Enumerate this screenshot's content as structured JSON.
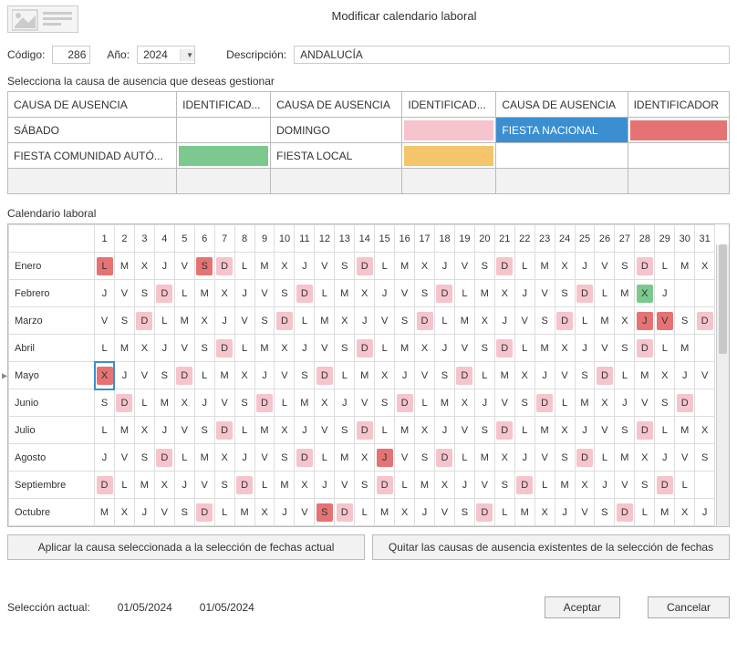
{
  "title": "Modificar calendario laboral",
  "form": {
    "codigo_label": "Código:",
    "codigo_value": "286",
    "ano_label": "Año:",
    "ano_value": "2024",
    "desc_label": "Descripción:",
    "desc_value": "ANDALUCÍA"
  },
  "absences": {
    "section_label": "Selecciona la causa de ausencia que deseas gestionar",
    "headers": [
      "CAUSA DE AUSENCIA",
      "IDENTIFICAD...",
      "CAUSA DE AUSENCIA",
      "IDENTIFICAD...",
      "CAUSA DE AUSENCIA",
      "IDENTIFICADOR"
    ],
    "rows": [
      [
        {
          "label": "SÁBADO",
          "bg": null,
          "fg": null
        },
        {
          "label": "",
          "bg": null,
          "fg": null
        },
        {
          "label": "DOMINGO",
          "bg": null,
          "fg": null
        },
        {
          "label": "",
          "bg": "#f6c4cc",
          "fg": null
        },
        {
          "label": "FIESTA NACIONAL",
          "bg": "#3b8ed0",
          "fg": "#ffffff"
        },
        {
          "label": "",
          "bg": "#e57373",
          "fg": null
        }
      ],
      [
        {
          "label": "FIESTA COMUNIDAD AUTÓ...",
          "bg": null,
          "fg": null
        },
        {
          "label": "",
          "bg": "#7bc98f",
          "fg": null
        },
        {
          "label": "FIESTA LOCAL",
          "bg": null,
          "fg": null
        },
        {
          "label": "",
          "bg": "#f5c56b",
          "fg": null
        },
        {
          "label": "",
          "bg": null,
          "fg": null
        },
        {
          "label": "",
          "bg": null,
          "fg": null
        }
      ]
    ],
    "filler_rows": 1
  },
  "calendar": {
    "section_label": "Calendario laboral",
    "day_headers": [
      "1",
      "2",
      "3",
      "4",
      "5",
      "6",
      "7",
      "8",
      "9",
      "10",
      "11",
      "12",
      "13",
      "14",
      "15",
      "16",
      "17",
      "18",
      "19",
      "20",
      "21",
      "22",
      "23",
      "24",
      "25",
      "26",
      "27",
      "28",
      "29",
      "30",
      "31"
    ],
    "months": [
      {
        "name": "Enero",
        "days": [
          {
            "g": "L",
            "c": "#e57373"
          },
          {
            "g": "M"
          },
          {
            "g": "X"
          },
          {
            "g": "J"
          },
          {
            "g": "V"
          },
          {
            "g": "S",
            "c": "#e57373"
          },
          {
            "g": "D",
            "c": "#f6c4cc"
          },
          {
            "g": "L"
          },
          {
            "g": "M"
          },
          {
            "g": "X"
          },
          {
            "g": "J"
          },
          {
            "g": "V"
          },
          {
            "g": "S"
          },
          {
            "g": "D",
            "c": "#f6c4cc"
          },
          {
            "g": "L"
          },
          {
            "g": "M"
          },
          {
            "g": "X"
          },
          {
            "g": "J"
          },
          {
            "g": "V"
          },
          {
            "g": "S"
          },
          {
            "g": "D",
            "c": "#f6c4cc"
          },
          {
            "g": "L"
          },
          {
            "g": "M"
          },
          {
            "g": "X"
          },
          {
            "g": "J"
          },
          {
            "g": "V"
          },
          {
            "g": "S"
          },
          {
            "g": "D",
            "c": "#f6c4cc"
          },
          {
            "g": "L"
          },
          {
            "g": "M"
          },
          {
            "g": "X"
          }
        ]
      },
      {
        "name": "Febrero",
        "days": [
          {
            "g": "J"
          },
          {
            "g": "V"
          },
          {
            "g": "S"
          },
          {
            "g": "D",
            "c": "#f6c4cc"
          },
          {
            "g": "L"
          },
          {
            "g": "M"
          },
          {
            "g": "X"
          },
          {
            "g": "J"
          },
          {
            "g": "V"
          },
          {
            "g": "S"
          },
          {
            "g": "D",
            "c": "#f6c4cc"
          },
          {
            "g": "L"
          },
          {
            "g": "M"
          },
          {
            "g": "X"
          },
          {
            "g": "J"
          },
          {
            "g": "V"
          },
          {
            "g": "S"
          },
          {
            "g": "D",
            "c": "#f6c4cc"
          },
          {
            "g": "L"
          },
          {
            "g": "M"
          },
          {
            "g": "X"
          },
          {
            "g": "J"
          },
          {
            "g": "V"
          },
          {
            "g": "S"
          },
          {
            "g": "D",
            "c": "#f6c4cc"
          },
          {
            "g": "L"
          },
          {
            "g": "M"
          },
          {
            "g": "X",
            "c": "#7bc98f"
          },
          {
            "g": "J"
          },
          {
            "g": ""
          },
          {
            "g": ""
          }
        ]
      },
      {
        "name": "Marzo",
        "days": [
          {
            "g": "V"
          },
          {
            "g": "S"
          },
          {
            "g": "D",
            "c": "#f6c4cc"
          },
          {
            "g": "L"
          },
          {
            "g": "M"
          },
          {
            "g": "X"
          },
          {
            "g": "J"
          },
          {
            "g": "V"
          },
          {
            "g": "S"
          },
          {
            "g": "D",
            "c": "#f6c4cc"
          },
          {
            "g": "L"
          },
          {
            "g": "M"
          },
          {
            "g": "X"
          },
          {
            "g": "J"
          },
          {
            "g": "V"
          },
          {
            "g": "S"
          },
          {
            "g": "D",
            "c": "#f6c4cc"
          },
          {
            "g": "L"
          },
          {
            "g": "M"
          },
          {
            "g": "X"
          },
          {
            "g": "J"
          },
          {
            "g": "V"
          },
          {
            "g": "S"
          },
          {
            "g": "D",
            "c": "#f6c4cc"
          },
          {
            "g": "L"
          },
          {
            "g": "M"
          },
          {
            "g": "X"
          },
          {
            "g": "J",
            "c": "#e57373"
          },
          {
            "g": "V",
            "c": "#e57373"
          },
          {
            "g": "S"
          },
          {
            "g": "D",
            "c": "#f6c4cc"
          }
        ]
      },
      {
        "name": "Abril",
        "days": [
          {
            "g": "L"
          },
          {
            "g": "M"
          },
          {
            "g": "X"
          },
          {
            "g": "J"
          },
          {
            "g": "V"
          },
          {
            "g": "S"
          },
          {
            "g": "D",
            "c": "#f6c4cc"
          },
          {
            "g": "L"
          },
          {
            "g": "M"
          },
          {
            "g": "X"
          },
          {
            "g": "J"
          },
          {
            "g": "V"
          },
          {
            "g": "S"
          },
          {
            "g": "D",
            "c": "#f6c4cc"
          },
          {
            "g": "L"
          },
          {
            "g": "M"
          },
          {
            "g": "X"
          },
          {
            "g": "J"
          },
          {
            "g": "V"
          },
          {
            "g": "S"
          },
          {
            "g": "D",
            "c": "#f6c4cc"
          },
          {
            "g": "L"
          },
          {
            "g": "M"
          },
          {
            "g": "X"
          },
          {
            "g": "J"
          },
          {
            "g": "V"
          },
          {
            "g": "S"
          },
          {
            "g": "D",
            "c": "#f6c4cc"
          },
          {
            "g": "L"
          },
          {
            "g": "M"
          },
          {
            "g": ""
          }
        ]
      },
      {
        "name": "Mayo",
        "days": [
          {
            "g": "X",
            "c": "#e57373",
            "sel": true
          },
          {
            "g": "J"
          },
          {
            "g": "V"
          },
          {
            "g": "S"
          },
          {
            "g": "D",
            "c": "#f6c4cc"
          },
          {
            "g": "L"
          },
          {
            "g": "M"
          },
          {
            "g": "X"
          },
          {
            "g": "J"
          },
          {
            "g": "V"
          },
          {
            "g": "S"
          },
          {
            "g": "D",
            "c": "#f6c4cc"
          },
          {
            "g": "L"
          },
          {
            "g": "M"
          },
          {
            "g": "X"
          },
          {
            "g": "J"
          },
          {
            "g": "V"
          },
          {
            "g": "S"
          },
          {
            "g": "D",
            "c": "#f6c4cc"
          },
          {
            "g": "L"
          },
          {
            "g": "M"
          },
          {
            "g": "X"
          },
          {
            "g": "J"
          },
          {
            "g": "V"
          },
          {
            "g": "S"
          },
          {
            "g": "D",
            "c": "#f6c4cc"
          },
          {
            "g": "L"
          },
          {
            "g": "M"
          },
          {
            "g": "X"
          },
          {
            "g": "J"
          },
          {
            "g": "V"
          }
        ]
      },
      {
        "name": "Junio",
        "days": [
          {
            "g": "S"
          },
          {
            "g": "D",
            "c": "#f6c4cc"
          },
          {
            "g": "L"
          },
          {
            "g": "M"
          },
          {
            "g": "X"
          },
          {
            "g": "J"
          },
          {
            "g": "V"
          },
          {
            "g": "S"
          },
          {
            "g": "D",
            "c": "#f6c4cc"
          },
          {
            "g": "L"
          },
          {
            "g": "M"
          },
          {
            "g": "X"
          },
          {
            "g": "J"
          },
          {
            "g": "V"
          },
          {
            "g": "S"
          },
          {
            "g": "D",
            "c": "#f6c4cc"
          },
          {
            "g": "L"
          },
          {
            "g": "M"
          },
          {
            "g": "X"
          },
          {
            "g": "J"
          },
          {
            "g": "V"
          },
          {
            "g": "S"
          },
          {
            "g": "D",
            "c": "#f6c4cc"
          },
          {
            "g": "L"
          },
          {
            "g": "M"
          },
          {
            "g": "X"
          },
          {
            "g": "J"
          },
          {
            "g": "V"
          },
          {
            "g": "S"
          },
          {
            "g": "D",
            "c": "#f6c4cc"
          },
          {
            "g": ""
          }
        ]
      },
      {
        "name": "Julio",
        "days": [
          {
            "g": "L"
          },
          {
            "g": "M"
          },
          {
            "g": "X"
          },
          {
            "g": "J"
          },
          {
            "g": "V"
          },
          {
            "g": "S"
          },
          {
            "g": "D",
            "c": "#f6c4cc"
          },
          {
            "g": "L"
          },
          {
            "g": "M"
          },
          {
            "g": "X"
          },
          {
            "g": "J"
          },
          {
            "g": "V"
          },
          {
            "g": "S"
          },
          {
            "g": "D",
            "c": "#f6c4cc"
          },
          {
            "g": "L"
          },
          {
            "g": "M"
          },
          {
            "g": "X"
          },
          {
            "g": "J"
          },
          {
            "g": "V"
          },
          {
            "g": "S"
          },
          {
            "g": "D",
            "c": "#f6c4cc"
          },
          {
            "g": "L"
          },
          {
            "g": "M"
          },
          {
            "g": "X"
          },
          {
            "g": "J"
          },
          {
            "g": "V"
          },
          {
            "g": "S"
          },
          {
            "g": "D",
            "c": "#f6c4cc"
          },
          {
            "g": "L"
          },
          {
            "g": "M"
          },
          {
            "g": "X"
          }
        ]
      },
      {
        "name": "Agosto",
        "days": [
          {
            "g": "J"
          },
          {
            "g": "V"
          },
          {
            "g": "S"
          },
          {
            "g": "D",
            "c": "#f6c4cc"
          },
          {
            "g": "L"
          },
          {
            "g": "M"
          },
          {
            "g": "X"
          },
          {
            "g": "J"
          },
          {
            "g": "V"
          },
          {
            "g": "S"
          },
          {
            "g": "D",
            "c": "#f6c4cc"
          },
          {
            "g": "L"
          },
          {
            "g": "M"
          },
          {
            "g": "X"
          },
          {
            "g": "J",
            "c": "#e57373"
          },
          {
            "g": "V"
          },
          {
            "g": "S"
          },
          {
            "g": "D",
            "c": "#f6c4cc"
          },
          {
            "g": "L"
          },
          {
            "g": "M"
          },
          {
            "g": "X"
          },
          {
            "g": "J"
          },
          {
            "g": "V"
          },
          {
            "g": "S"
          },
          {
            "g": "D",
            "c": "#f6c4cc"
          },
          {
            "g": "L"
          },
          {
            "g": "M"
          },
          {
            "g": "X"
          },
          {
            "g": "J"
          },
          {
            "g": "V"
          },
          {
            "g": "S"
          }
        ]
      },
      {
        "name": "Septiembre",
        "days": [
          {
            "g": "D",
            "c": "#f6c4cc"
          },
          {
            "g": "L"
          },
          {
            "g": "M"
          },
          {
            "g": "X"
          },
          {
            "g": "J"
          },
          {
            "g": "V"
          },
          {
            "g": "S"
          },
          {
            "g": "D",
            "c": "#f6c4cc"
          },
          {
            "g": "L"
          },
          {
            "g": "M"
          },
          {
            "g": "X"
          },
          {
            "g": "J"
          },
          {
            "g": "V"
          },
          {
            "g": "S"
          },
          {
            "g": "D",
            "c": "#f6c4cc"
          },
          {
            "g": "L"
          },
          {
            "g": "M"
          },
          {
            "g": "X"
          },
          {
            "g": "J"
          },
          {
            "g": "V"
          },
          {
            "g": "S"
          },
          {
            "g": "D",
            "c": "#f6c4cc"
          },
          {
            "g": "L"
          },
          {
            "g": "M"
          },
          {
            "g": "X"
          },
          {
            "g": "J"
          },
          {
            "g": "V"
          },
          {
            "g": "S"
          },
          {
            "g": "D",
            "c": "#f6c4cc"
          },
          {
            "g": "L"
          },
          {
            "g": ""
          }
        ]
      },
      {
        "name": "Octubre",
        "days": [
          {
            "g": "M"
          },
          {
            "g": "X"
          },
          {
            "g": "J"
          },
          {
            "g": "V"
          },
          {
            "g": "S"
          },
          {
            "g": "D",
            "c": "#f6c4cc"
          },
          {
            "g": "L"
          },
          {
            "g": "M"
          },
          {
            "g": "X"
          },
          {
            "g": "J"
          },
          {
            "g": "V"
          },
          {
            "g": "S",
            "c": "#e57373"
          },
          {
            "g": "D",
            "c": "#f6c4cc"
          },
          {
            "g": "L"
          },
          {
            "g": "M"
          },
          {
            "g": "X"
          },
          {
            "g": "J"
          },
          {
            "g": "V"
          },
          {
            "g": "S"
          },
          {
            "g": "D",
            "c": "#f6c4cc"
          },
          {
            "g": "L"
          },
          {
            "g": "M"
          },
          {
            "g": "X"
          },
          {
            "g": "J"
          },
          {
            "g": "V"
          },
          {
            "g": "S"
          },
          {
            "g": "D",
            "c": "#f6c4cc"
          },
          {
            "g": "L"
          },
          {
            "g": "M"
          },
          {
            "g": "X"
          },
          {
            "g": "J"
          }
        ]
      }
    ]
  },
  "buttons": {
    "apply": "Aplicar la causa seleccionada a la selección de fechas actual",
    "remove": "Quitar las causas de ausencia existentes de la selección de fechas",
    "accept": "Aceptar",
    "cancel": "Cancelar"
  },
  "selection": {
    "label": "Selección actual:",
    "from": "01/05/2024",
    "to": "01/05/2024"
  },
  "colors": {
    "selected_row_bg": "#3b8ed0",
    "selected_row_fg": "#ffffff",
    "empty_row_bg": "#f2f2f2"
  }
}
